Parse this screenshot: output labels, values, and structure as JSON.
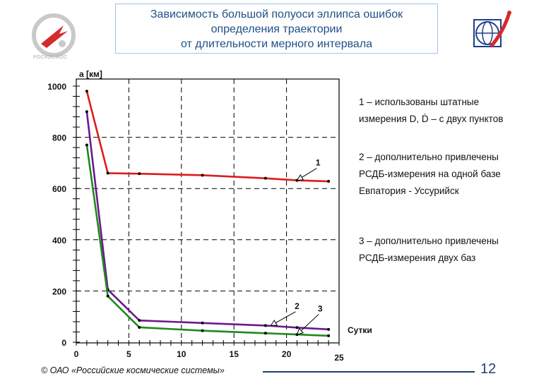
{
  "header": {
    "title_lines": [
      "Зависимость большой полуоси эллипса ошибок",
      "определения траектории",
      "от длительности мерного интервала"
    ],
    "logo_left_caption": "РОСКОСМОС"
  },
  "legend": {
    "item1": [
      "1 – использованы штатные",
      "измерения D, Ḋ – с двух пунктов"
    ],
    "item2": [
      "2 – дополнительно привлечены",
      "РСДБ-измерения на одной базе",
      "Евпатория - Уссурийск"
    ],
    "item3": [
      "3 – дополнительно привлечены",
      "РСДБ-измерения двух баз"
    ]
  },
  "footer": {
    "copyright": "© ОАО «Российские космические системы»",
    "page_number": "12"
  },
  "colors": {
    "series1": "#dd1c1c",
    "series2": "#6a1a8e",
    "series3": "#1e8a1e",
    "grid": "#000000",
    "title_text": "#1f4f86"
  },
  "chart_data": {
    "type": "line",
    "ylabel": "a [км]",
    "xlabel": "Сутки",
    "xlim": [
      0,
      25
    ],
    "ylim": [
      0,
      1000
    ],
    "x_ticks": [
      0,
      5,
      10,
      15,
      20,
      25
    ],
    "y_ticks": [
      0,
      200,
      400,
      600,
      800,
      1000
    ],
    "grid": true,
    "series": [
      {
        "name": "1",
        "color": "#dd1c1c",
        "x": [
          1,
          3,
          6,
          12,
          18,
          21,
          24
        ],
        "y": [
          980,
          660,
          658,
          652,
          640,
          632,
          628
        ]
      },
      {
        "name": "2",
        "color": "#6a1a8e",
        "x": [
          1,
          3,
          6,
          12,
          18,
          21,
          24
        ],
        "y": [
          900,
          205,
          85,
          75,
          65,
          57,
          50
        ]
      },
      {
        "name": "3",
        "color": "#1e8a1e",
        "x": [
          1,
          3,
          6,
          12,
          18,
          21,
          24
        ],
        "y": [
          770,
          180,
          58,
          45,
          35,
          30,
          25
        ]
      }
    ],
    "annotations": [
      {
        "label": "1",
        "x": 23,
        "y": 690,
        "arrow_to": [
          21,
          632
        ]
      },
      {
        "label": "2",
        "x": 21,
        "y": 130,
        "arrow_to": [
          18.5,
          65
        ]
      },
      {
        "label": "3",
        "x": 23.2,
        "y": 120,
        "arrow_to": [
          21,
          30
        ]
      }
    ]
  }
}
